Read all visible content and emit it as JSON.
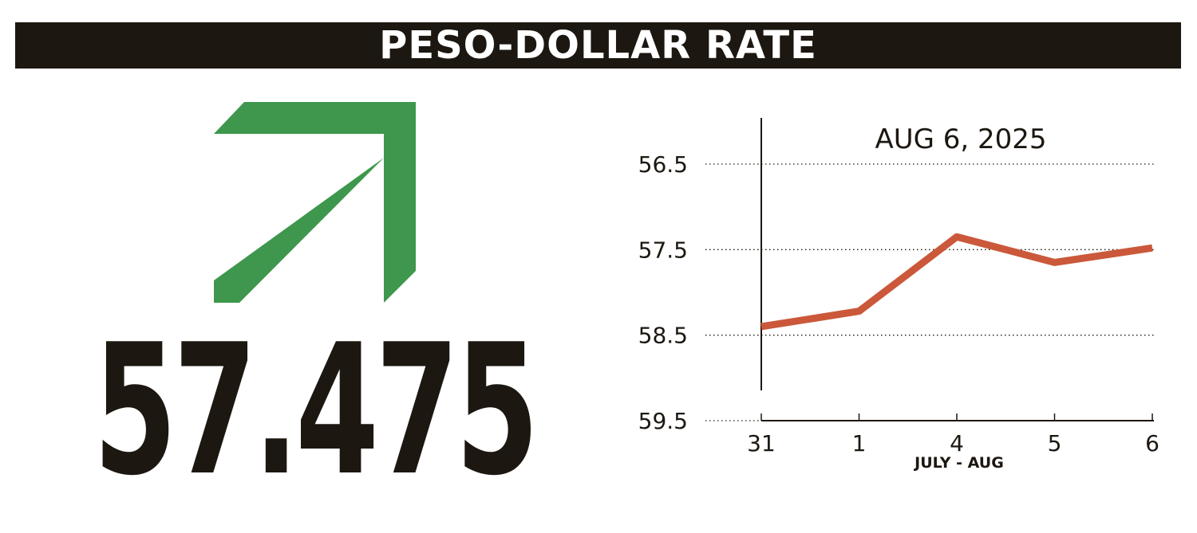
{
  "header": {
    "title": "PESO-DOLLAR RATE"
  },
  "indicator": {
    "direction": "up",
    "icon": "up-right-arrow-icon",
    "color": "#3e974c"
  },
  "rate": {
    "value": "57.475"
  },
  "chart_data": {
    "type": "line",
    "title": "AUG 6, 2025",
    "xlabel": "JULY - AUG",
    "ylabel": "",
    "categories": [
      "31",
      "1",
      "4",
      "5",
      "6"
    ],
    "series": [
      {
        "values": [
          58.4,
          58.22,
          57.35,
          57.65,
          57.48
        ],
        "color": "#cb583a"
      }
    ],
    "ylim": [
      56.5,
      59.5
    ],
    "y_inverted": true,
    "yticks": [
      "56.5",
      "57.5",
      "58.5",
      "59.5"
    ],
    "grid": "horizontal dotted",
    "legend": "none"
  }
}
